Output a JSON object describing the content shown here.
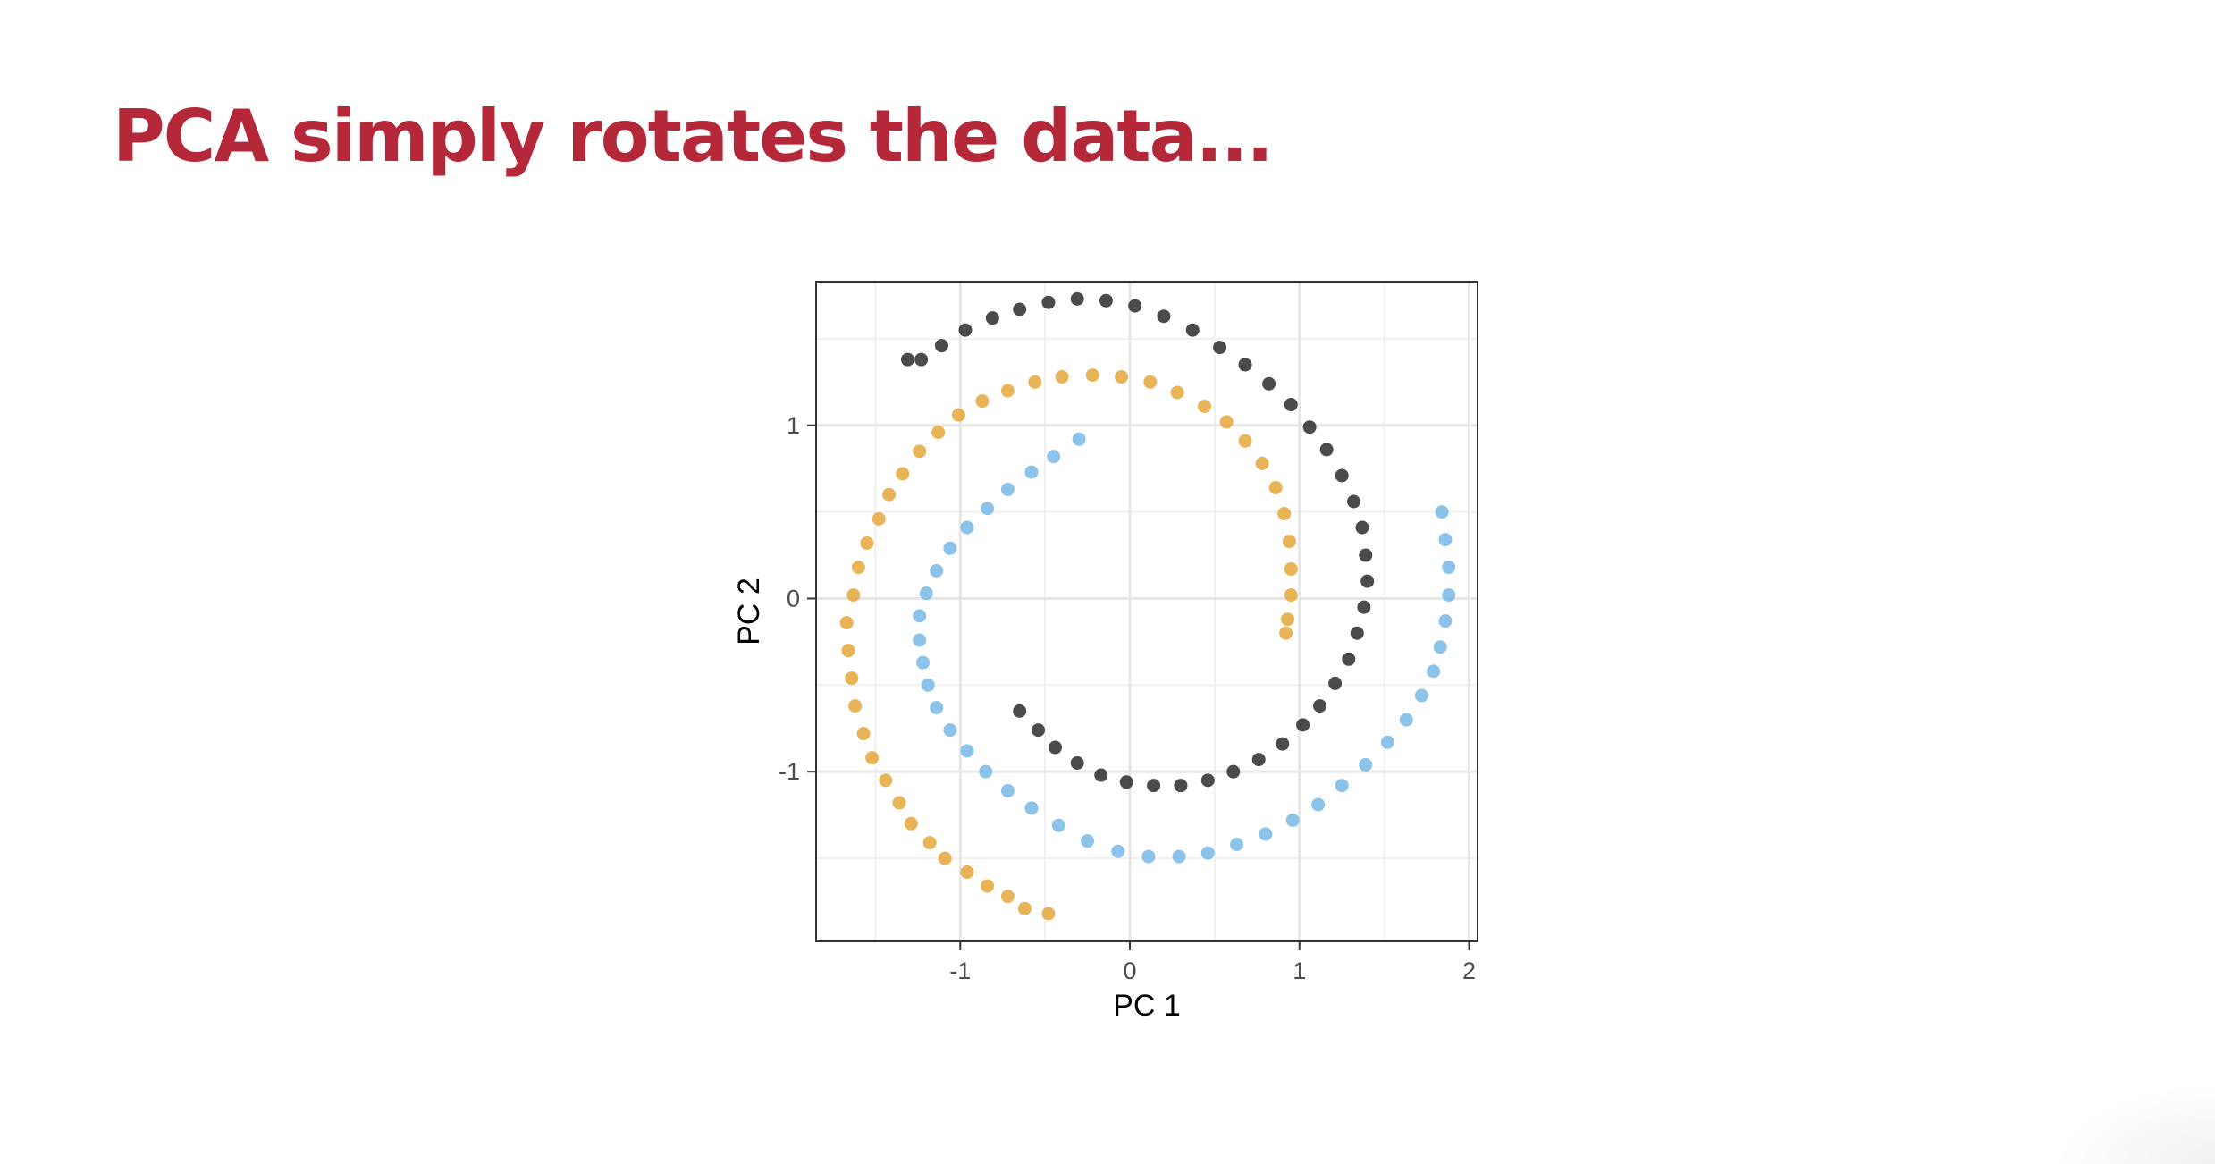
{
  "slide": {
    "title": "PCA simply rotates the data...",
    "title_color": "#b5283a"
  },
  "chart_data": {
    "type": "scatter",
    "title": "",
    "xlabel": "PC 1",
    "ylabel": "PC 2",
    "xlim": [
      -1.85,
      2.05
    ],
    "ylim": [
      -1.98,
      1.83
    ],
    "x_ticks": [
      -1,
      0,
      1,
      2
    ],
    "x_tick_labels": [
      "-1",
      "0",
      "1",
      "2"
    ],
    "y_ticks": [
      -1,
      0,
      1
    ],
    "y_tick_labels": [
      "-1",
      "0",
      "1"
    ],
    "grid": true,
    "legend": "none",
    "series": [
      {
        "color": "#e5a63a",
        "points": [
          [
            -0.48,
            -1.82
          ],
          [
            -0.62,
            -1.79
          ],
          [
            -0.72,
            -1.72
          ],
          [
            -0.84,
            -1.66
          ],
          [
            -0.96,
            -1.58
          ],
          [
            -1.09,
            -1.5
          ],
          [
            -1.18,
            -1.41
          ],
          [
            -1.29,
            -1.3
          ],
          [
            -1.36,
            -1.18
          ],
          [
            -1.44,
            -1.05
          ],
          [
            -1.52,
            -0.92
          ],
          [
            -1.57,
            -0.78
          ],
          [
            -1.62,
            -0.62
          ],
          [
            -1.64,
            -0.46
          ],
          [
            -1.66,
            -0.3
          ],
          [
            -1.67,
            -0.14
          ],
          [
            -1.63,
            0.02
          ],
          [
            -1.6,
            0.18
          ],
          [
            -1.55,
            0.32
          ],
          [
            -1.48,
            0.46
          ],
          [
            -1.42,
            0.6
          ],
          [
            -1.34,
            0.72
          ],
          [
            -1.24,
            0.85
          ],
          [
            -1.13,
            0.96
          ],
          [
            -1.01,
            1.06
          ],
          [
            -0.87,
            1.14
          ],
          [
            -0.72,
            1.2
          ],
          [
            -0.56,
            1.25
          ],
          [
            -0.4,
            1.28
          ],
          [
            -0.22,
            1.29
          ],
          [
            -0.05,
            1.28
          ],
          [
            0.12,
            1.25
          ],
          [
            0.28,
            1.19
          ],
          [
            0.44,
            1.11
          ],
          [
            0.57,
            1.02
          ],
          [
            0.68,
            0.91
          ],
          [
            0.78,
            0.78
          ],
          [
            0.86,
            0.64
          ],
          [
            0.91,
            0.49
          ],
          [
            0.94,
            0.33
          ],
          [
            0.95,
            0.17
          ],
          [
            0.95,
            0.02
          ],
          [
            0.93,
            -0.12
          ],
          [
            0.92,
            -0.2
          ]
        ]
      },
      {
        "color": "#78b8e8",
        "points": [
          [
            -0.3,
            0.92
          ],
          [
            -0.45,
            0.82
          ],
          [
            -0.58,
            0.73
          ],
          [
            -0.72,
            0.63
          ],
          [
            -0.84,
            0.52
          ],
          [
            -0.96,
            0.41
          ],
          [
            -1.06,
            0.29
          ],
          [
            -1.14,
            0.16
          ],
          [
            -1.2,
            0.03
          ],
          [
            -1.24,
            -0.1
          ],
          [
            -1.24,
            -0.24
          ],
          [
            -1.22,
            -0.37
          ],
          [
            -1.19,
            -0.5
          ],
          [
            -1.14,
            -0.63
          ],
          [
            -1.06,
            -0.76
          ],
          [
            -0.96,
            -0.88
          ],
          [
            -0.85,
            -1.0
          ],
          [
            -0.72,
            -1.11
          ],
          [
            -0.58,
            -1.21
          ],
          [
            -0.42,
            -1.31
          ],
          [
            -0.25,
            -1.4
          ],
          [
            -0.07,
            -1.46
          ],
          [
            0.11,
            -1.49
          ],
          [
            0.29,
            -1.49
          ],
          [
            0.46,
            -1.47
          ],
          [
            0.63,
            -1.42
          ],
          [
            0.8,
            -1.36
          ],
          [
            0.96,
            -1.28
          ],
          [
            1.11,
            -1.19
          ],
          [
            1.25,
            -1.08
          ],
          [
            1.39,
            -0.96
          ],
          [
            1.52,
            -0.83
          ],
          [
            1.63,
            -0.7
          ],
          [
            1.72,
            -0.56
          ],
          [
            1.79,
            -0.42
          ],
          [
            1.83,
            -0.28
          ],
          [
            1.86,
            -0.13
          ],
          [
            1.88,
            0.02
          ],
          [
            1.88,
            0.18
          ],
          [
            1.86,
            0.34
          ],
          [
            1.84,
            0.5
          ]
        ]
      },
      {
        "color": "#2b2b2b",
        "points": [
          [
            -0.65,
            -0.65
          ],
          [
            -0.54,
            -0.76
          ],
          [
            -0.44,
            -0.86
          ],
          [
            -0.31,
            -0.95
          ],
          [
            -0.17,
            -1.02
          ],
          [
            -0.02,
            -1.06
          ],
          [
            0.14,
            -1.08
          ],
          [
            0.3,
            -1.08
          ],
          [
            0.46,
            -1.05
          ],
          [
            0.61,
            -1.0
          ],
          [
            0.76,
            -0.93
          ],
          [
            0.9,
            -0.84
          ],
          [
            1.02,
            -0.73
          ],
          [
            1.12,
            -0.62
          ],
          [
            1.21,
            -0.49
          ],
          [
            1.29,
            -0.35
          ],
          [
            1.34,
            -0.2
          ],
          [
            1.38,
            -0.05
          ],
          [
            1.4,
            0.1
          ],
          [
            1.39,
            0.25
          ],
          [
            1.37,
            0.41
          ],
          [
            1.32,
            0.56
          ],
          [
            1.25,
            0.71
          ],
          [
            1.16,
            0.86
          ],
          [
            1.06,
            0.99
          ],
          [
            0.95,
            1.12
          ],
          [
            0.82,
            1.24
          ],
          [
            0.68,
            1.35
          ],
          [
            0.53,
            1.45
          ],
          [
            0.37,
            1.55
          ],
          [
            0.2,
            1.63
          ],
          [
            0.03,
            1.69
          ],
          [
            -0.14,
            1.72
          ],
          [
            -0.31,
            1.73
          ],
          [
            -0.48,
            1.71
          ],
          [
            -0.65,
            1.67
          ],
          [
            -0.81,
            1.62
          ],
          [
            -0.97,
            1.55
          ],
          [
            -1.11,
            1.46
          ],
          [
            -1.23,
            1.38
          ],
          [
            -1.31,
            1.38
          ]
        ]
      }
    ]
  }
}
